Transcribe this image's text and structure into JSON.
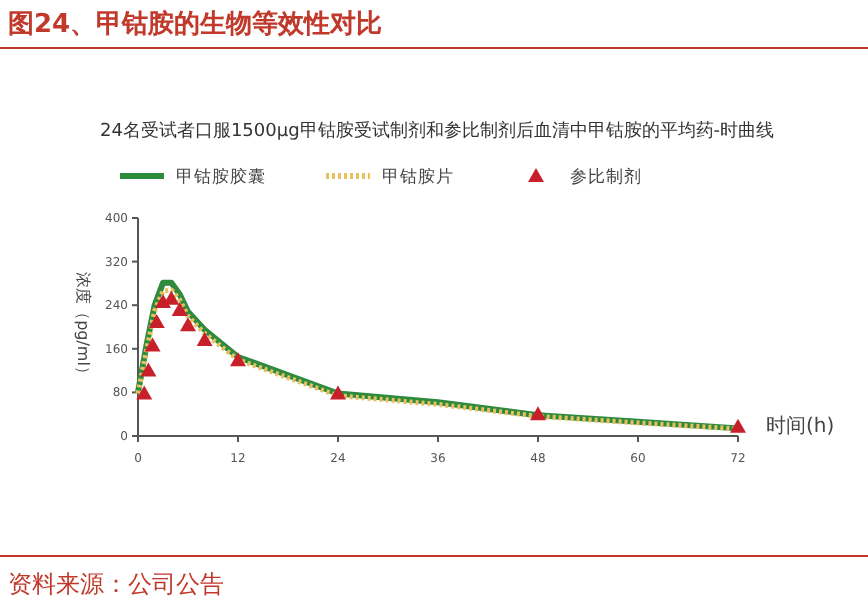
{
  "chart_data": {
    "type": "line",
    "title": "图24、甲钴胺的生物等效性对比",
    "subtitle": "24名受试者口服1500μg甲钴胺受试制剂和参比制剂后血清中甲钴胺的平均药-时曲线",
    "xlabel": "时间(h)",
    "ylabel": "浓度（pg/ml）",
    "annotations": [
      "资料来源：公司公告"
    ],
    "xlim": [
      0,
      72
    ],
    "xticks": [
      0,
      12,
      24,
      36,
      48,
      60,
      72
    ],
    "ylim": [
      0,
      400
    ],
    "yticks": [
      0,
      80,
      160,
      240,
      320,
      400
    ],
    "grid": false,
    "legend": "top",
    "series": [
      {
        "name": "甲钴胺胶囊",
        "type": "line",
        "color": "#2e8b3e",
        "line_style": "solid",
        "marker": "none",
        "x": [
          0,
          1,
          2,
          3,
          4,
          5,
          6,
          8,
          12,
          24,
          36,
          48,
          60,
          72
        ],
        "values": [
          80,
          165,
          240,
          281,
          281,
          260,
          228,
          195,
          145,
          78,
          62,
          38,
          26,
          14
        ]
      },
      {
        "name": "甲钴胺片",
        "type": "line",
        "color": "#e8c060",
        "line_style": "dotted",
        "marker": "none",
        "x": [
          0,
          1,
          2,
          3,
          4,
          5,
          6,
          8,
          12,
          24,
          36,
          48,
          60,
          72
        ],
        "values": [
          78,
          155,
          230,
          266,
          268,
          250,
          220,
          188,
          140,
          74,
          58,
          36,
          24,
          13
        ]
      },
      {
        "name": "参比制剂",
        "type": "scatter",
        "color": "#c8202a",
        "marker": "triangle",
        "x": [
          0.75,
          1.25,
          1.75,
          2.25,
          3,
          4,
          5,
          6,
          8,
          12,
          24,
          48,
          72
        ],
        "values": [
          78,
          120,
          166,
          209,
          246,
          252,
          231,
          203,
          176,
          139,
          78,
          40,
          17
        ]
      }
    ]
  }
}
